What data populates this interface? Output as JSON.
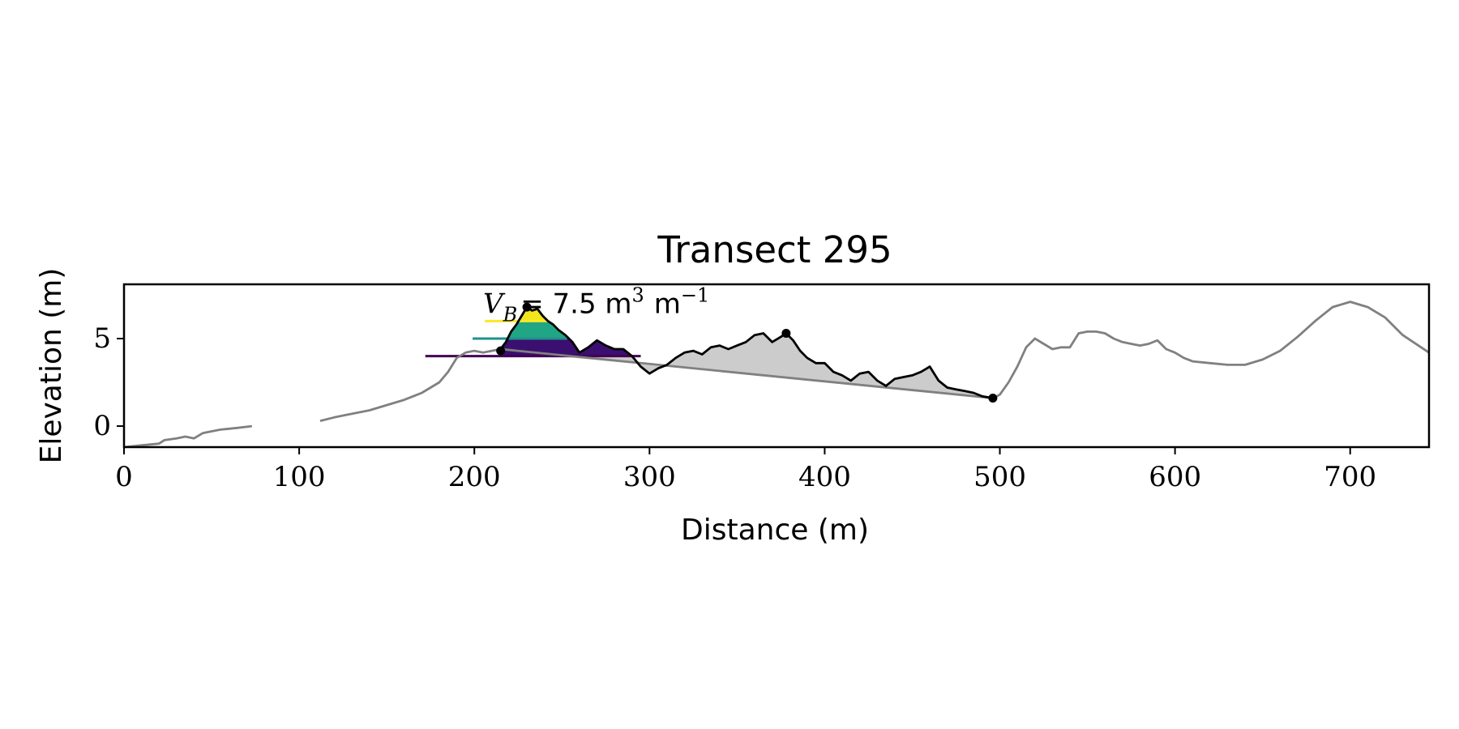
{
  "chart_data": {
    "type": "line",
    "title": "Transect 295",
    "xlabel": "Distance (m)",
    "ylabel": "Elevation (m)",
    "xlim": [
      0,
      745
    ],
    "ylim": [
      -1.2,
      8.1
    ],
    "xticks": [
      {
        "value": 0,
        "label": "0"
      },
      {
        "value": 100,
        "label": "100"
      },
      {
        "value": 200,
        "label": "200"
      },
      {
        "value": 300,
        "label": "300"
      },
      {
        "value": 400,
        "label": "400"
      },
      {
        "value": 500,
        "label": "500"
      },
      {
        "value": 600,
        "label": "600"
      },
      {
        "value": 700,
        "label": "700"
      }
    ],
    "yticks": [
      {
        "value": 0,
        "label": "0"
      },
      {
        "value": 5,
        "label": "5"
      }
    ],
    "grid": false,
    "annotation": {
      "prefix": "V",
      "subscript": "B",
      "text": "= 7.5 m",
      "sup1": "3",
      "unit2": "m",
      "sup2": "−1",
      "x": 205,
      "y": 6.45
    },
    "colors": {
      "profile": "#808080",
      "dune": "#000000",
      "volume_fill": "#cccccc",
      "level_1": "#440154",
      "level_2": "#21918c",
      "level_3": "#fde725",
      "fill_1": "#3b0f70",
      "fill_2": "#21a685",
      "fill_3": "#f1e51d"
    },
    "series": [
      {
        "role": "profile-left",
        "x": [
          0,
          10,
          20,
          23,
          30,
          35,
          40,
          45,
          50,
          55,
          60,
          65,
          73
        ],
        "y": [
          -1.2,
          -1.1,
          -1.0,
          -0.8,
          -0.7,
          -0.6,
          -0.7,
          -0.4,
          -0.3,
          -0.2,
          -0.15,
          -0.1,
          0.0
        ]
      },
      {
        "role": "profile-right",
        "x": [
          112,
          120,
          130,
          140,
          150,
          160,
          170,
          180,
          185,
          190,
          195,
          200,
          205,
          210,
          215,
          496,
          500,
          505,
          510,
          515,
          520,
          525,
          530,
          535,
          540,
          545,
          550,
          555,
          560,
          565,
          570,
          575,
          580,
          585,
          590,
          595,
          600,
          605,
          610,
          620,
          630,
          640,
          650,
          660,
          670,
          680,
          690,
          700,
          710,
          720,
          730,
          745
        ],
        "y": [
          0.3,
          0.5,
          0.7,
          0.9,
          1.2,
          1.5,
          1.9,
          2.5,
          3.1,
          3.9,
          4.2,
          4.3,
          4.2,
          4.3,
          4.4,
          1.6,
          1.8,
          2.5,
          3.4,
          4.5,
          5.0,
          4.7,
          4.4,
          4.5,
          4.5,
          5.3,
          5.4,
          5.4,
          5.3,
          5.0,
          4.8,
          4.7,
          4.6,
          4.7,
          4.9,
          4.4,
          4.2,
          3.9,
          3.7,
          3.6,
          3.5,
          3.5,
          3.8,
          4.3,
          5.1,
          6.0,
          6.8,
          7.1,
          6.8,
          6.2,
          5.2,
          4.2
        ]
      },
      {
        "role": "dune",
        "x": [
          215,
          218,
          221,
          224,
          227,
          230,
          233,
          236,
          239,
          242,
          245,
          248,
          252,
          256,
          260,
          265,
          270,
          275,
          280,
          285,
          290,
          295,
          300,
          305,
          310,
          315,
          320,
          325,
          330,
          335,
          340,
          345,
          350,
          355,
          360,
          365,
          370,
          375,
          378,
          382,
          386,
          390,
          395,
          400,
          405,
          410,
          415,
          420,
          425,
          430,
          435,
          440,
          445,
          450,
          455,
          460,
          465,
          470,
          475,
          480,
          485,
          490,
          496
        ],
        "y": [
          4.4,
          4.8,
          5.4,
          5.8,
          6.3,
          6.8,
          6.6,
          6.7,
          6.3,
          6.0,
          5.8,
          5.5,
          5.2,
          4.8,
          4.2,
          4.5,
          4.9,
          4.6,
          4.4,
          4.4,
          4.0,
          3.4,
          3.0,
          3.3,
          3.5,
          3.9,
          4.2,
          4.3,
          4.1,
          4.5,
          4.6,
          4.4,
          4.6,
          4.8,
          5.2,
          5.3,
          4.8,
          5.1,
          5.3,
          4.9,
          4.3,
          3.9,
          3.6,
          3.6,
          3.1,
          2.9,
          2.6,
          3.0,
          3.1,
          2.6,
          2.3,
          2.7,
          2.8,
          2.9,
          3.1,
          3.4,
          2.6,
          2.2,
          2.1,
          2.0,
          1.9,
          1.7,
          1.6
        ]
      },
      {
        "role": "base-line",
        "x": [
          215,
          496
        ],
        "y": [
          4.3,
          1.6
        ]
      }
    ],
    "levels": [
      {
        "y": 4.0,
        "x": [
          172,
          295
        ]
      },
      {
        "y": 5.0,
        "x": [
          199,
          253
        ]
      },
      {
        "y": 6.0,
        "x": [
          206,
          243
        ]
      }
    ],
    "markers": [
      {
        "x": 215,
        "y": 4.3
      },
      {
        "x": 230,
        "y": 6.8
      },
      {
        "x": 378,
        "y": 5.3
      },
      {
        "x": 496,
        "y": 1.6
      }
    ]
  }
}
